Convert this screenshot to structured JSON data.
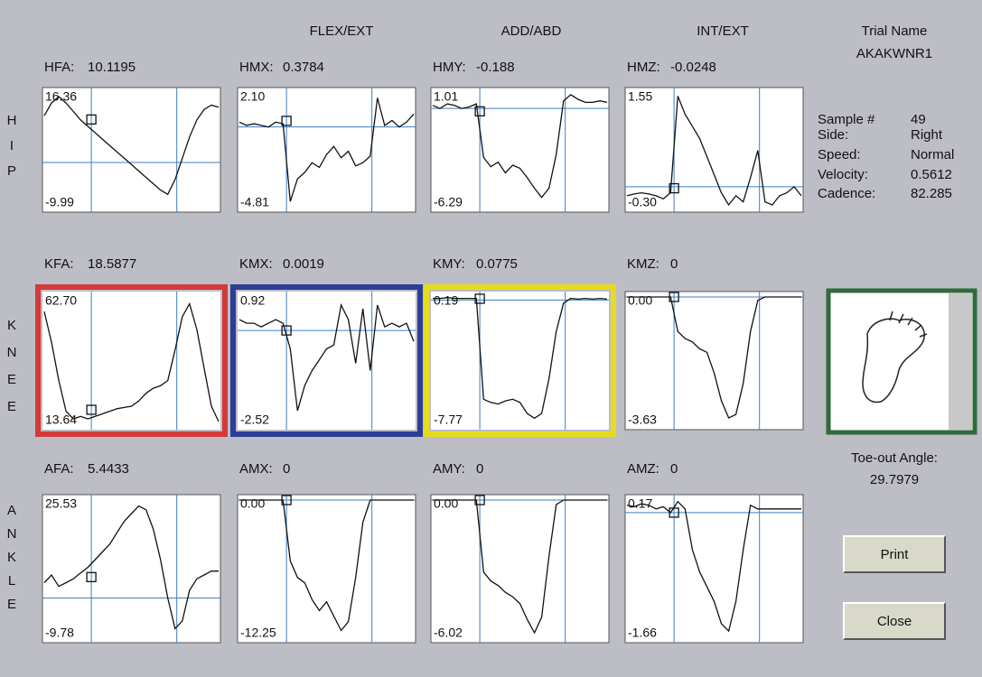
{
  "header": {
    "columns": [
      "FLEX/EXT",
      "ADD/ABD",
      "INT/EXT"
    ],
    "trial_name_label": "Trial Name",
    "trial_name": "AKAKWNR1"
  },
  "rows": [
    {
      "label": "HIP",
      "panels": [
        {
          "name": "HFA:",
          "value": 10.1195,
          "ylim": [
            -9.99,
            16.36
          ],
          "yticks": [
            -9.99,
            16.36
          ],
          "values": [
            11,
            14,
            15.5,
            14,
            12,
            10,
            8.5,
            7,
            5.5,
            4,
            2.5,
            1,
            -0.5,
            -2,
            -3.5,
            -5,
            -6.5,
            -7.5,
            -4,
            1,
            6,
            10,
            12.5,
            13.5,
            13
          ]
        },
        {
          "name": "HMX:",
          "value": 0.3784,
          "ylim": [
            -4.81,
            2.1
          ],
          "yticks": [
            -4.81,
            {
              "value": 2.1,
              "label": "2.10"
            }
          ],
          "values": [
            0.3,
            0.1,
            0.2,
            0.1,
            0,
            0.3,
            0.2,
            -4.6,
            -3.2,
            -2.8,
            -2.2,
            -2.5,
            -1.7,
            -1.2,
            -1.9,
            -1.5,
            -2.4,
            -2.2,
            -1.8,
            1.8,
            0.1,
            0.4,
            0,
            0.3,
            0.8
          ]
        },
        {
          "name": "HMY:",
          "value": -0.188,
          "ylim": [
            -6.29,
            1.01
          ],
          "yticks": [
            -6.29,
            1.01
          ],
          "values": [
            0.2,
            0,
            0.3,
            0.2,
            0,
            0.1,
            0.3,
            -3.2,
            -3.8,
            -3.5,
            -4.2,
            -3.7,
            -3.9,
            -4.5,
            -5.2,
            -5.8,
            -5.2,
            -3,
            0.5,
            0.9,
            0.6,
            0.4,
            0.4,
            0.5,
            0.4
          ]
        },
        {
          "name": "HMZ:",
          "value": -0.0248,
          "ylim": [
            -0.3,
            1.55
          ],
          "yticks": [
            {
              "value": -0.3,
              "label": "-0.30"
            },
            1.55
          ],
          "values": [
            -0.15,
            -0.12,
            -0.1,
            -0.12,
            -0.15,
            -0.2,
            -0.1,
            1.5,
            1.2,
            1.0,
            0.8,
            0.5,
            0.2,
            -0.1,
            -0.3,
            -0.15,
            -0.25,
            0.15,
            0.6,
            -0.25,
            -0.3,
            -0.15,
            -0.1,
            0,
            -0.15
          ]
        }
      ]
    },
    {
      "label": "KNEE",
      "panels": [
        {
          "name": "KFA:",
          "value": 18.5877,
          "ylim": [
            13.64,
            62.7
          ],
          "yticks": [
            13.64,
            {
              "value": 62.7,
              "label": "62.70"
            }
          ],
          "border_color": "#d23a3a",
          "values": [
            57,
            45,
            30,
            18,
            15,
            16,
            15,
            16,
            17,
            18,
            19,
            19.5,
            20,
            22,
            25,
            27,
            28,
            30,
            42,
            55,
            60,
            50,
            35,
            20,
            14
          ]
        },
        {
          "name": "KMX:",
          "value": 0.0019,
          "ylim": [
            -2.52,
            0.92
          ],
          "yticks": [
            -2.52,
            0.92
          ],
          "border_color": "#2b3f96",
          "values": [
            0.3,
            0.2,
            0.2,
            0.1,
            0.2,
            0.3,
            0.2,
            -0.5,
            -2.2,
            -1.5,
            -1.1,
            -0.8,
            -0.5,
            -0.4,
            0.7,
            0.3,
            -0.9,
            0.6,
            -1.1,
            0.7,
            0.1,
            0.2,
            0.1,
            0.2,
            -0.3
          ]
        },
        {
          "name": "KMY:",
          "value": 0.0775,
          "ylim": [
            -7.77,
            0.19
          ],
          "yticks": [
            -7.77,
            0.19
          ],
          "border_color": "#e6dc1e",
          "values": [
            0.1,
            0.1,
            0.15,
            0.1,
            0.1,
            0.1,
            0.1,
            -6.3,
            -6.5,
            -6.6,
            -6.4,
            -6.3,
            -6.5,
            -7.2,
            -7.5,
            -7.2,
            -5,
            -2,
            -0.2,
            0.1,
            0.05,
            0.1,
            0.05,
            0.1,
            0.05
          ]
        },
        {
          "name": "KMZ:",
          "value": 0,
          "ylim": [
            -3.63,
            0
          ],
          "yticks": [
            -3.63,
            {
              "value": 0,
              "label": "0.00"
            }
          ],
          "values": [
            0,
            0,
            0,
            0,
            0,
            0,
            0,
            -1,
            -1.2,
            -1.3,
            -1.5,
            -1.6,
            -2.2,
            -3,
            -3.5,
            -3.4,
            -2.5,
            -1,
            -0.1,
            0,
            0,
            0,
            0,
            0,
            0
          ]
        }
      ]
    },
    {
      "label": "ANKLE",
      "panels": [
        {
          "name": "AFA:",
          "value": 5.4433,
          "ylim": [
            -9.78,
            25.53
          ],
          "yticks": [
            -9.78,
            25.53
          ],
          "values": [
            4,
            6,
            3,
            4,
            5,
            6.5,
            8,
            10,
            12,
            14,
            17,
            20,
            22,
            24,
            23,
            18,
            10,
            0,
            -8,
            -6,
            2,
            5,
            6,
            7,
            7
          ]
        },
        {
          "name": "AMX:",
          "value": 0,
          "ylim": [
            -12.25,
            0
          ],
          "yticks": [
            -12.25,
            {
              "value": 0,
              "label": "0.00"
            }
          ],
          "values": [
            0,
            0,
            0,
            0,
            0,
            0,
            0,
            -5.5,
            -7,
            -7.5,
            -9,
            -10,
            -9.2,
            -10.5,
            -11.8,
            -11,
            -7,
            -2,
            0,
            0,
            0,
            0,
            0,
            0,
            0
          ]
        },
        {
          "name": "AMY:",
          "value": 0,
          "ylim": [
            -6.02,
            0
          ],
          "yticks": [
            -6.02,
            {
              "value": 0,
              "label": "0.00"
            }
          ],
          "values": [
            0,
            0,
            0,
            0,
            0,
            0,
            0,
            -3.2,
            -3.6,
            -3.8,
            -4.1,
            -4.3,
            -4.6,
            -5.3,
            -5.9,
            -5.2,
            -2.5,
            -0.2,
            0,
            0,
            0,
            0,
            0,
            0,
            0
          ]
        },
        {
          "name": "AMZ:",
          "value": 0,
          "ylim": [
            -1.66,
            0.17
          ],
          "yticks": [
            -1.66,
            0.17
          ],
          "values": [
            0.1,
            0.08,
            0.12,
            0.1,
            0.05,
            0.08,
            0,
            0.15,
            0.05,
            -0.5,
            -0.8,
            -1.0,
            -1.2,
            -1.5,
            -1.6,
            -1.2,
            -0.5,
            0.1,
            0.05,
            0.05,
            0.05,
            0.05,
            0.05,
            0.05,
            0.05
          ]
        }
      ]
    }
  ],
  "info": {
    "sample_label": "Sample #",
    "sample": 49,
    "fields": [
      [
        "Side:",
        "Right"
      ],
      [
        "Speed:",
        "Normal"
      ],
      [
        "Velocity:",
        0.5612
      ],
      [
        "Cadence:",
        82.285
      ]
    ]
  },
  "toe_out": {
    "label": "Toe-out Angle:",
    "value": 29.7979
  },
  "buttons": [
    "Print",
    "Close"
  ]
}
